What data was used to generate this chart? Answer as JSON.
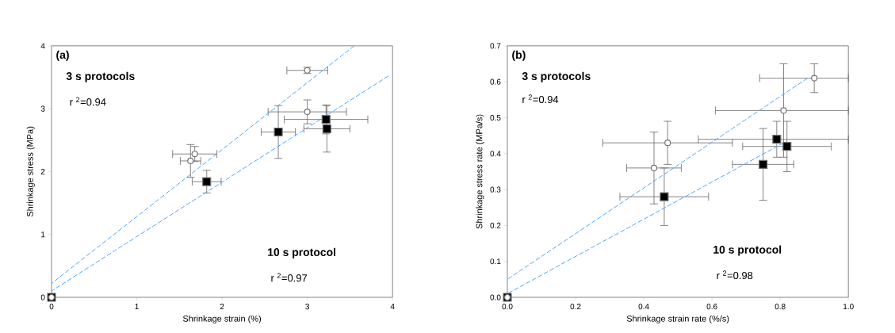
{
  "chart_data": [
    {
      "type": "scatter",
      "xlabel": "Shrinkage strain (%)",
      "ylabel": "Shrinkage stress (MPa)",
      "xlim": [
        0,
        4
      ],
      "ylim": [
        0,
        4
      ],
      "xticks": [
        0,
        1,
        2,
        3,
        4
      ],
      "yticks": [
        0,
        1,
        2,
        3,
        4
      ],
      "grid": false,
      "annotations": [
        "(a)",
        "3 s protocols",
        "r $^{2}$=0.94",
        "10 s protocol",
        "r $^{2}$=0.97"
      ],
      "series": [
        {
          "marker": "square",
          "color": "#000000",
          "x": [
            0,
            1.82,
            2.66,
            3.22,
            3.23
          ],
          "values": [
            0,
            1.84,
            2.63,
            2.83,
            2.68
          ],
          "errors": [
            null,
            0.18,
            0.42,
            0.23,
            0.37
          ],
          "xerrors": [
            null,
            0.17,
            0.2,
            0.49,
            0.27
          ]
        },
        {
          "marker": "circle",
          "color": "#ffffff",
          "x": [
            0,
            1.63,
            1.68,
            3.0,
            3.0
          ],
          "values": [
            0,
            2.17,
            2.28,
            2.95,
            3.61
          ],
          "errors": [
            null,
            0.26,
            0.12,
            0.19,
            0.05
          ],
          "xerrors": [
            null,
            0.12,
            0.26,
            0.46,
            0.24
          ]
        },
        {
          "type": "line",
          "marker": "none",
          "line_style": "dashed",
          "color": "#4da6ff",
          "x": [
            0,
            3.55
          ],
          "values": [
            0.22,
            4
          ]
        },
        {
          "type": "line",
          "marker": "none",
          "line_style": "dashed",
          "color": "#4da6ff",
          "x": [
            0,
            3.95
          ],
          "values": [
            0.1,
            3.52
          ]
        }
      ]
    },
    {
      "type": "scatter",
      "xlabel": "Shrinkage strain rate (%/s)",
      "ylabel": "Shrinkage stress rate (MPa/s)",
      "xlim": [
        0,
        1
      ],
      "ylim": [
        0,
        0.7
      ],
      "xticks": [
        {
          "value": 0,
          "label": "0.0"
        },
        0.2,
        0.4,
        0.6,
        0.8,
        {
          "value": 1,
          "label": "1.0"
        }
      ],
      "yticks": [
        {
          "value": 0,
          "label": "0.0"
        },
        0.1,
        0.2,
        0.3,
        0.4,
        0.5,
        0.6,
        0.7
      ],
      "grid": false,
      "annotations": [
        "(b)",
        "3 s protocols",
        "r $^{2}$=0.94",
        "10 s protocol",
        "r $^{2}$=0.98"
      ],
      "series": [
        {
          "marker": "square",
          "color": "#000000",
          "x": [
            0,
            0.46,
            0.75,
            0.79,
            0.82
          ],
          "values": [
            0,
            0.28,
            0.37,
            0.44,
            0.42
          ],
          "errors": [
            null,
            0.08,
            0.1,
            0.05,
            0.07
          ],
          "xerrors": [
            null,
            0.13,
            0.09,
            [
              0.56,
              1.0
            ],
            0.13
          ]
        },
        {
          "marker": "circle",
          "color": "#ffffff",
          "x": [
            0,
            0.43,
            0.47,
            0.81,
            0.9
          ],
          "values": [
            0,
            0.36,
            0.43,
            0.52,
            0.61
          ],
          "errors": [
            null,
            0.1,
            0.06,
            0.13,
            0.04
          ],
          "xerrors": [
            null,
            0.08,
            0.19,
            [
              0.61,
              1.0
            ],
            [
              0.74,
              1.0
            ]
          ]
        },
        {
          "type": "line",
          "marker": "none",
          "line_style": "dashed",
          "color": "#4da6ff",
          "x": [
            0,
            0.88
          ],
          "values": [
            0.05,
            0.61
          ]
        },
        {
          "type": "line",
          "marker": "none",
          "line_style": "dashed",
          "color": "#4da6ff",
          "x": [
            0,
            0.81
          ],
          "values": [
            0.01,
            0.43
          ]
        }
      ]
    }
  ]
}
